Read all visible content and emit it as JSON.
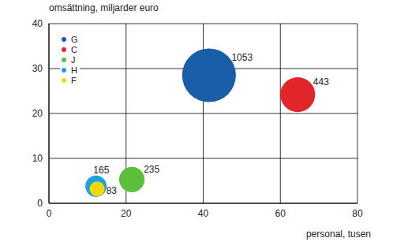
{
  "chart_data": {
    "type": "bubble",
    "x_label": "personal, tusen",
    "y_label": "omsättning, miljarder euro",
    "xlim": [
      0,
      80
    ],
    "xticks": [
      0,
      20,
      40,
      60,
      80
    ],
    "ylim": [
      0,
      40
    ],
    "yticks": [
      0,
      10,
      20,
      30,
      40
    ],
    "grid": true,
    "legend": "upper left",
    "data_labels": true,
    "series": [
      {
        "name": "G",
        "color": "#1a5ea8",
        "x": [
          41.5
        ],
        "values": [
          28.5
        ],
        "sizes": [
          1053
        ]
      },
      {
        "name": "C",
        "color": "#e0262a",
        "x": [
          64.5
        ],
        "values": [
          24.2
        ],
        "sizes": [
          443
        ]
      },
      {
        "name": "J",
        "color": "#5bbf3a",
        "x": [
          21.5
        ],
        "values": [
          5.3
        ],
        "sizes": [
          235
        ]
      },
      {
        "name": "H",
        "color": "#1aa3e0",
        "x": [
          12.2
        ],
        "values": [
          3.8
        ],
        "sizes": [
          165
        ]
      },
      {
        "name": "F",
        "color": "#f5d800",
        "x": [
          12.5
        ],
        "values": [
          3.2
        ],
        "sizes": [
          83
        ]
      }
    ]
  }
}
